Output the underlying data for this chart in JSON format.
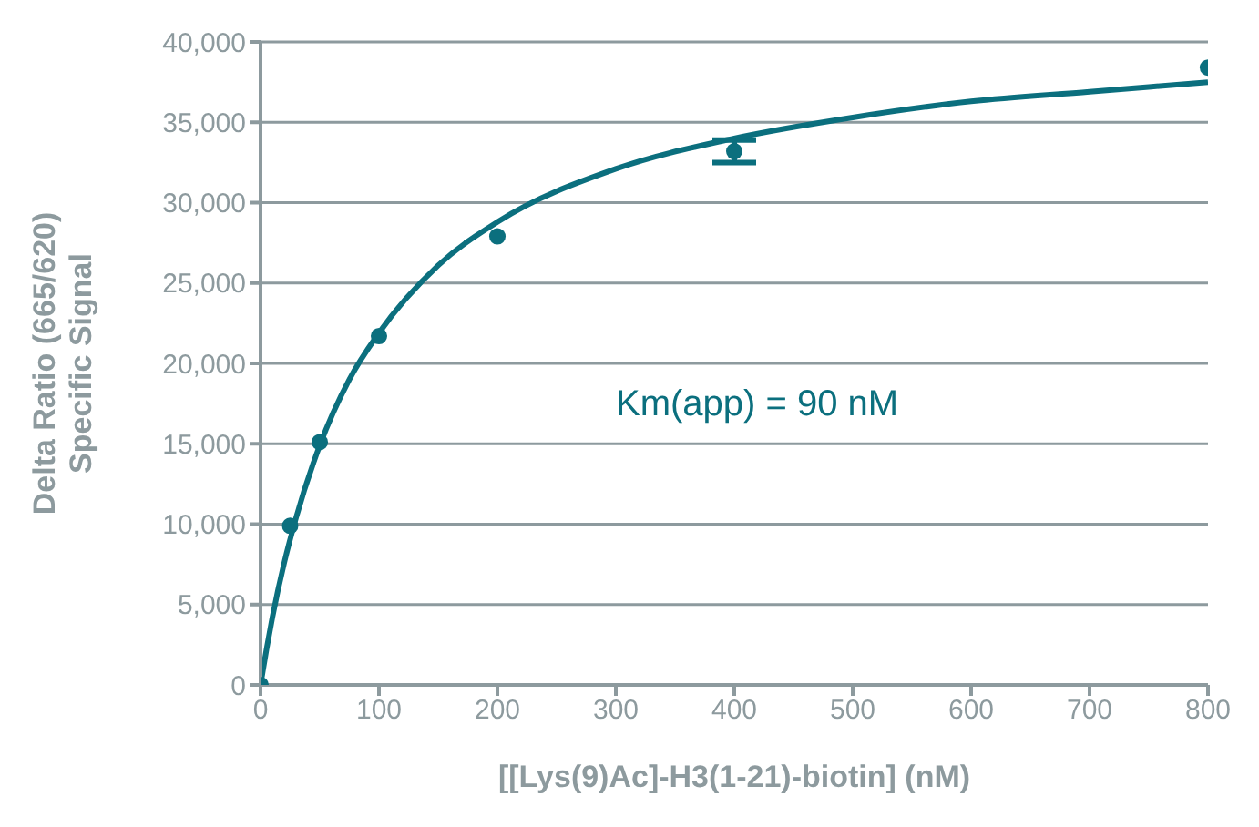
{
  "chart_data": {
    "type": "scatter",
    "xlabel": "[[Lys(9)Ac]-H3(1-21)-biotin] (nM)",
    "ylabel": "Delta Ratio (665/620)\nSpecific Signal",
    "annotations": [
      "Km(app) = 90 nM"
    ],
    "xlim": [
      0,
      800
    ],
    "xticks": [
      0,
      100,
      200,
      300,
      400,
      500,
      600,
      700,
      800
    ],
    "ylim": [
      0,
      40000
    ],
    "yticks": [
      0,
      {
        "value": 5000,
        "label": "5,000"
      },
      {
        "value": 10000,
        "label": "10,000"
      },
      {
        "value": 15000,
        "label": "15,000"
      },
      {
        "value": 20000,
        "label": "20,000"
      },
      {
        "value": 25000,
        "label": "25,000"
      },
      {
        "value": 30000,
        "label": "30,000"
      },
      {
        "value": 35000,
        "label": "35,000"
      },
      {
        "value": 40000,
        "label": "40,000"
      }
    ],
    "grid": "y",
    "legend": false,
    "marker": "circle",
    "series": [
      {
        "color": "#0b6f7e",
        "x": [
          0,
          25,
          50,
          100,
          200,
          400,
          800
        ],
        "values": [
          0,
          9900,
          15100,
          21700,
          27900,
          33200,
          38400
        ],
        "errors": [
          null,
          null,
          null,
          null,
          null,
          700,
          null
        ]
      },
      {
        "type": "line",
        "color": "#0b6f7e",
        "marker": "none",
        "line_style": "solid",
        "x": [
          0,
          5,
          10,
          20,
          30,
          50,
          75,
          100,
          150,
          200,
          300,
          400,
          500,
          600,
          700,
          800
        ],
        "values": [
          0,
          2200,
          4200,
          7600,
          10400,
          14900,
          19000,
          21900,
          26100,
          28800,
          32100,
          34000,
          35300,
          36300,
          36900,
          37500
        ]
      }
    ]
  }
}
